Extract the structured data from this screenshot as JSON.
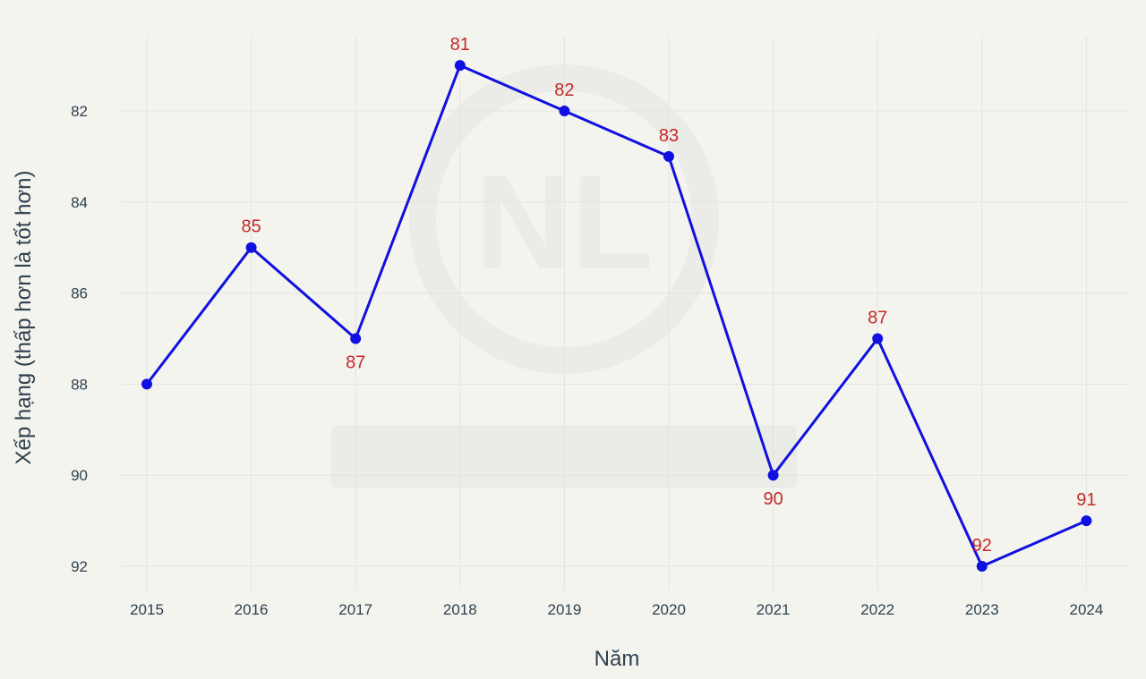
{
  "chart_data": {
    "type": "line",
    "title": "",
    "xlabel": "Năm",
    "ylabel": "Xếp hạng (thấp hơn là tốt hơn)",
    "x": [
      "2015",
      "2016",
      "2017",
      "2018",
      "2019",
      "2020",
      "2021",
      "2022",
      "2023",
      "2024"
    ],
    "series": [
      {
        "values": [
          88,
          85,
          87,
          81,
          82,
          83,
          90,
          87,
          92,
          91
        ],
        "color": "#1010e0"
      }
    ],
    "data_labels": [
      "",
      "85",
      "87",
      "81",
      "82",
      "83",
      "90",
      "87",
      "92",
      "91"
    ],
    "y_ticks": [
      82,
      84,
      86,
      88,
      90,
      92
    ],
    "ylim": [
      80,
      93
    ],
    "y_reversed": true,
    "grid": true,
    "label_color": "#c62828",
    "watermark_icon": "nl-logo-watermark"
  }
}
